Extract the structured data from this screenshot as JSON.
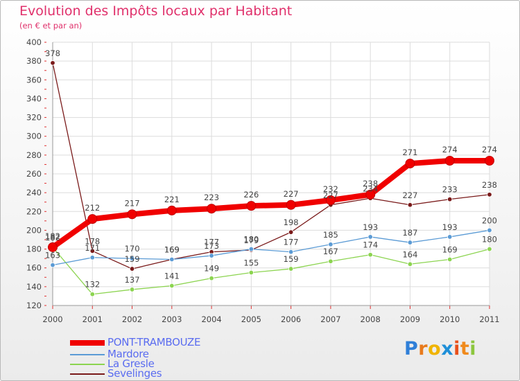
{
  "header": {
    "title": "Evolution des Impôts locaux par Habitant",
    "subtitle": "(en € et par an)"
  },
  "logo": {
    "text": "Proxiti",
    "letters": [
      "P",
      "r",
      "o",
      "x",
      "i",
      "t",
      "i"
    ],
    "letter_colors": [
      "#2f7fd8",
      "#e87a1c",
      "#f0b400",
      "#1f8fd8",
      "#e8501c",
      "#f08a1c",
      "#8cc63e"
    ]
  },
  "chart_data": {
    "type": "line",
    "title": "Evolution des Impôts locaux par Habitant",
    "subtitle": "(en € et par an)",
    "xlabel": "",
    "ylabel": "",
    "categories": [
      "2000",
      "2001",
      "2002",
      "2003",
      "2004",
      "2005",
      "2006",
      "2007",
      "2008",
      "2009",
      "2010",
      "2011"
    ],
    "ylim": [
      120,
      400
    ],
    "yticks": [
      120,
      140,
      160,
      180,
      200,
      220,
      240,
      260,
      280,
      300,
      320,
      340,
      360,
      380,
      400
    ],
    "grid": true,
    "series": [
      {
        "name": "Sevelinges",
        "color": "#7a1a1a",
        "values": [
          378,
          178,
          159,
          169,
          177,
          179,
          198,
          227,
          234,
          227,
          233,
          238
        ]
      },
      {
        "name": "La Gresle",
        "color": "#8cd450",
        "values": [
          182,
          132,
          137,
          141,
          149,
          155,
          159,
          167,
          174,
          164,
          169,
          180
        ]
      },
      {
        "name": "Mardore",
        "color": "#5b9bd5",
        "values": [
          163,
          171,
          170,
          169,
          173,
          180,
          177,
          185,
          193,
          187,
          193,
          200
        ]
      },
      {
        "name": "PONT-TRAMBOUZE",
        "color": "#f00000",
        "values": [
          182,
          212,
          217,
          221,
          223,
          226,
          227,
          232,
          238,
          271,
          274,
          274
        ]
      }
    ],
    "legend": [
      "PONT-TRAMBOUZE",
      "Mardore",
      "La Gresle",
      "Sevelinges"
    ]
  }
}
